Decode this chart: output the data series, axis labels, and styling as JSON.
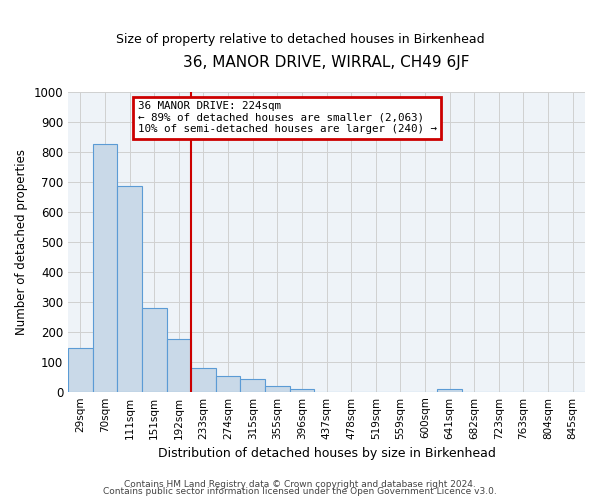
{
  "title": "36, MANOR DRIVE, WIRRAL, CH49 6JF",
  "subtitle": "Size of property relative to detached houses in Birkenhead",
  "xlabel": "Distribution of detached houses by size in Birkenhead",
  "ylabel": "Number of detached properties",
  "footer_line1": "Contains HM Land Registry data © Crown copyright and database right 2024.",
  "footer_line2": "Contains public sector information licensed under the Open Government Licence v3.0.",
  "bin_labels": [
    "29sqm",
    "70sqm",
    "111sqm",
    "151sqm",
    "192sqm",
    "233sqm",
    "274sqm",
    "315sqm",
    "355sqm",
    "396sqm",
    "437sqm",
    "478sqm",
    "519sqm",
    "559sqm",
    "600sqm",
    "641sqm",
    "682sqm",
    "723sqm",
    "763sqm",
    "804sqm",
    "845sqm"
  ],
  "bar_heights": [
    145,
    825,
    685,
    280,
    175,
    80,
    52,
    42,
    20,
    10,
    0,
    0,
    0,
    0,
    0,
    10,
    0,
    0,
    0,
    0,
    0
  ],
  "bar_color": "#c9d9e8",
  "bar_edge_color": "#5b9bd5",
  "vline_x_idx": 5,
  "vline_color": "#cc0000",
  "annotation_line1": "36 MANOR DRIVE: 224sqm",
  "annotation_line2": "← 89% of detached houses are smaller (2,063)",
  "annotation_line3": "10% of semi-detached houses are larger (240) →",
  "annotation_box_color": "#cc0000",
  "ylim": [
    0,
    1000
  ],
  "yticks": [
    0,
    100,
    200,
    300,
    400,
    500,
    600,
    700,
    800,
    900,
    1000
  ],
  "grid_color": "#d0d0d0",
  "bg_color": "#eef3f8"
}
